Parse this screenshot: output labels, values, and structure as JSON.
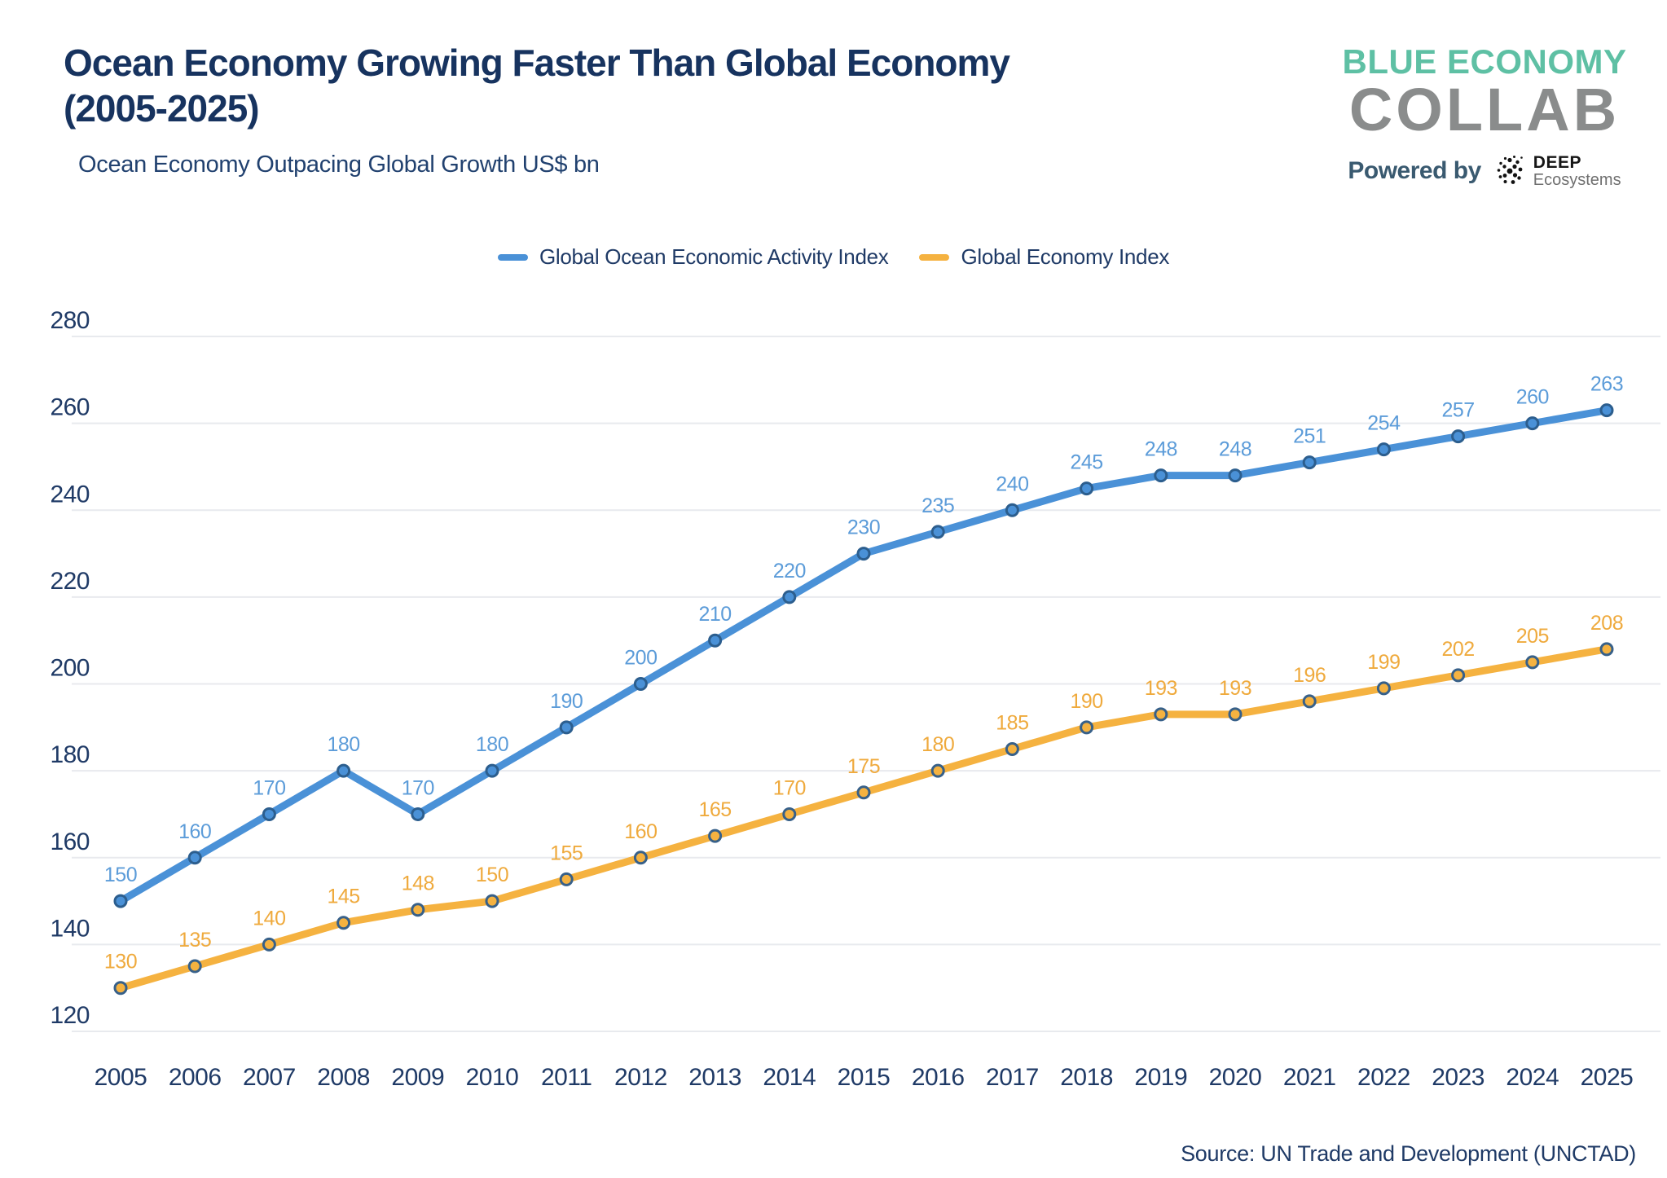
{
  "header": {
    "title_line1": "Ocean Economy Growing Faster Than Global Economy",
    "title_line2": "(2005-2025)",
    "subtitle": "Ocean Economy Outpacing Global Growth US$ bn"
  },
  "logo": {
    "line1": "BLUE ECONOMY",
    "line2": "COLLAB",
    "powered_by": "Powered by",
    "partner_name": "DEEP",
    "partner_sub": "Ecosystems",
    "icon": "dots-cluster-icon",
    "line1_color": "#5EC0A4",
    "line2_color": "#8A8C8C"
  },
  "legend": [
    {
      "label": "Global Ocean Economic Activity Index",
      "color": "#4A91D7"
    },
    {
      "label": "Global Economy Index",
      "color": "#F5B240"
    }
  ],
  "chart_data": {
    "type": "line",
    "title": "Ocean Economy Growing Faster Than Global Economy (2005-2025)",
    "subtitle": "Ocean Economy Outpacing Global Growth US$ bn",
    "x": [
      2005,
      2006,
      2007,
      2008,
      2009,
      2010,
      2011,
      2012,
      2013,
      2014,
      2015,
      2016,
      2017,
      2018,
      2019,
      2020,
      2021,
      2022,
      2023,
      2024,
      2025
    ],
    "series": [
      {
        "name": "Global Ocean Economic Activity Index",
        "color": "#4A91D7",
        "label_color": "#5C9CD9",
        "marker_stroke": "#2C5E8E",
        "values": [
          150,
          160,
          170,
          180,
          170,
          180,
          190,
          200,
          210,
          220,
          230,
          235,
          240,
          245,
          248,
          248,
          251,
          254,
          257,
          260,
          263
        ]
      },
      {
        "name": "Global Economy Index",
        "color": "#F5B240",
        "label_color": "#EFAA3D",
        "marker_stroke": "#376089",
        "values": [
          130,
          135,
          140,
          145,
          148,
          150,
          155,
          160,
          165,
          170,
          175,
          180,
          185,
          190,
          193,
          193,
          196,
          199,
          202,
          205,
          208
        ]
      }
    ],
    "ylim": [
      120,
      280
    ],
    "ytick_step": 20,
    "xlabel": "",
    "ylabel": "",
    "grid": "horizontal",
    "legend_position": "top",
    "data_labels": true
  },
  "source": "Source: UN Trade and Development (UNCTAD)"
}
